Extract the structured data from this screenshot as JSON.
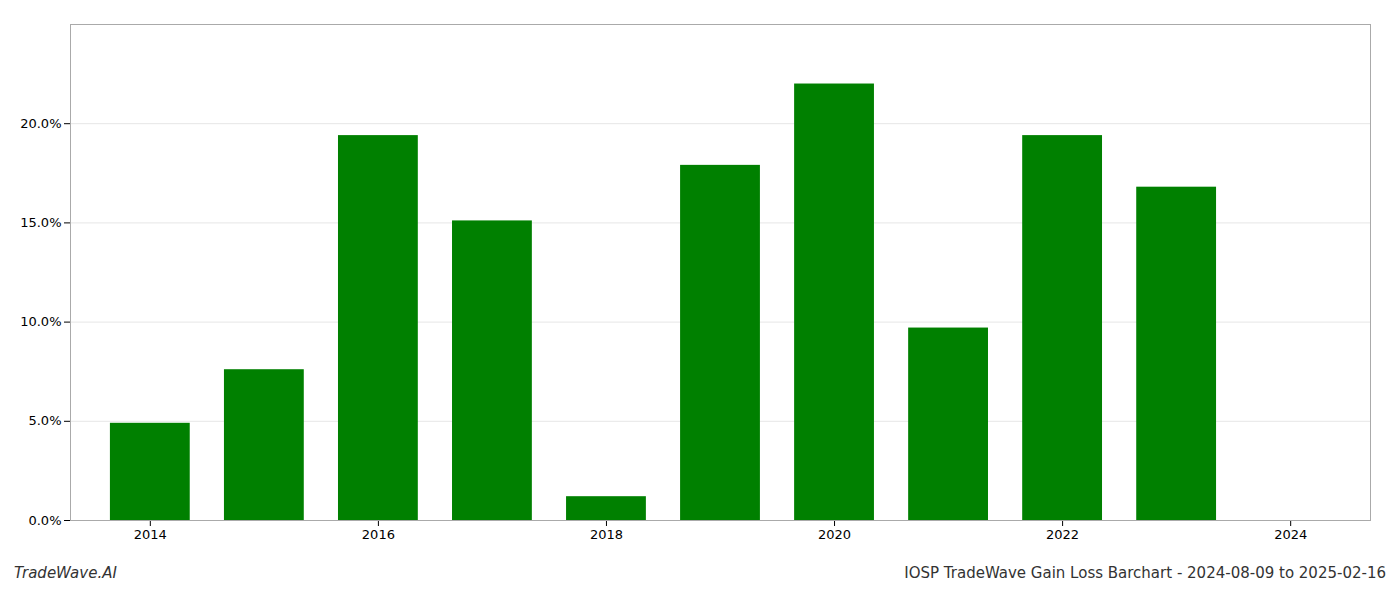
{
  "chart_data": {
    "type": "bar",
    "title": "IOSP TradeWave Gain Loss Barchart - 2024-08-09 to 2025-02-16",
    "annotations": [
      "TradeWave.AI"
    ],
    "x": [
      2014,
      2015,
      2016,
      2017,
      2018,
      2019,
      2020,
      2021,
      2022,
      2023
    ],
    "values": [
      0.049,
      0.076,
      0.194,
      0.151,
      0.012,
      0.179,
      0.22,
      0.097,
      0.194,
      0.168
    ],
    "color": "#008000",
    "xlim": [
      2013.3,
      2024.7
    ],
    "xticks": [
      2014,
      2016,
      2018,
      2020,
      2022,
      2024
    ],
    "ylim": [
      0,
      0.25
    ],
    "yticks": [
      {
        "value": 0.0,
        "label": "0.0%"
      },
      {
        "value": 0.05,
        "label": "5.0%"
      },
      {
        "value": 0.1,
        "label": "10.0%"
      },
      {
        "value": 0.15,
        "label": "15.0%"
      },
      {
        "value": 0.2,
        "label": "20.0%"
      }
    ],
    "grid": true
  }
}
